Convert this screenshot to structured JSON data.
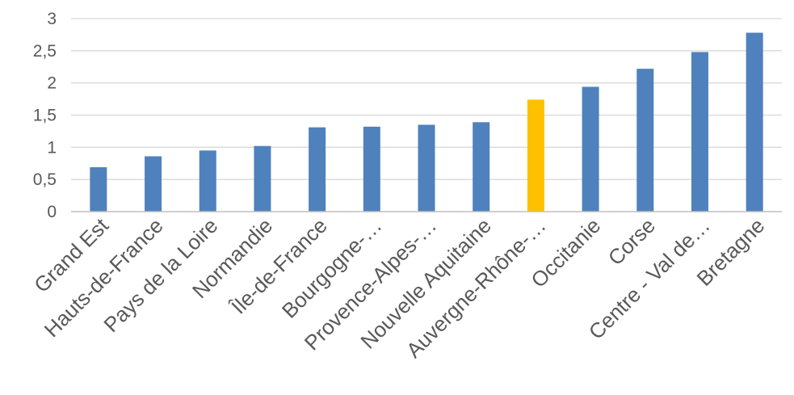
{
  "chart_data": {
    "type": "bar",
    "categories": [
      "Grand Est",
      "Hauts-de-France",
      "Pays de la Loire",
      "Normandie",
      "Île-de-France",
      "Bourgogne-…",
      "Provence-Alpes-…",
      "Nouvelle Aquitaine",
      "Auvergne-Rhône-…",
      "Occitanie",
      "Corse",
      "Centre - Val de…",
      "Bretagne"
    ],
    "values": [
      0.69,
      0.86,
      0.95,
      1.02,
      1.31,
      1.32,
      1.35,
      1.39,
      1.74,
      1.94,
      2.22,
      2.48,
      2.78
    ],
    "highlight_index": 8,
    "colors": {
      "bar": "#4f81bd",
      "highlight": "#ffc000"
    },
    "ylim": [
      0,
      3
    ],
    "yticks": [
      0,
      0.5,
      1,
      1.5,
      2,
      2.5,
      3
    ],
    "ytick_labels": [
      "0",
      "0,5",
      "1",
      "1,5",
      "2",
      "2,5",
      "3"
    ],
    "grid": true,
    "title": "",
    "xlabel": "",
    "ylabel": ""
  }
}
